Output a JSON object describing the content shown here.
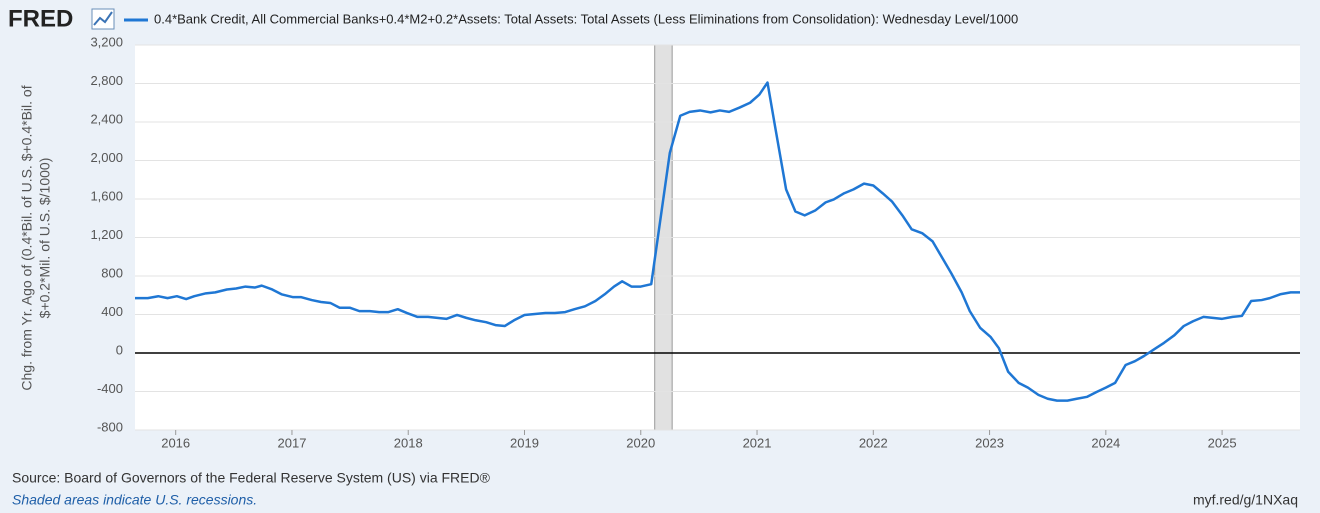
{
  "brand": "FRED",
  "chart_data": {
    "type": "line",
    "ylabel": [
      "Chg. from Yr. Ago of (0.4*Bil. of U.S. $+0.4*Bil. of",
      "$+0.2*Mil. of U.S. $/1000)"
    ],
    "xlim": [
      2015.65,
      2025.67
    ],
    "xticks": [
      2016,
      2017,
      2018,
      2019,
      2020,
      2021,
      2022,
      2023,
      2024,
      2025
    ],
    "ylim": [
      -800,
      3200
    ],
    "yticks": [
      {
        "value": 3200,
        "label": "3,200"
      },
      {
        "value": 2800,
        "label": "2,800"
      },
      {
        "value": 2400,
        "label": "2,400"
      },
      {
        "value": 2000,
        "label": "2,000"
      },
      {
        "value": 1600,
        "label": "1,600"
      },
      {
        "value": 1200,
        "label": "1,200"
      },
      800,
      400,
      0,
      -400,
      -800
    ],
    "grid": true,
    "recessions": [
      [
        2020.12,
        2020.27
      ]
    ],
    "series": [
      {
        "name": "0.4*Bank Credit, All Commercial Banks+0.4*M2+0.2*Assets: Total Assets: Total Assets (Less Eliminations from Consolidation): Wednesday Level/1000",
        "color": "#1f77d4",
        "x": [
          2015.65,
          2015.76,
          2015.85,
          2015.93,
          2016.01,
          2016.09,
          2016.16,
          2016.26,
          2016.34,
          2016.44,
          2016.52,
          2016.6,
          2016.68,
          2016.74,
          2016.83,
          2016.91,
          2017.01,
          2017.08,
          2017.17,
          2017.25,
          2017.33,
          2017.41,
          2017.5,
          2017.58,
          2017.67,
          2017.75,
          2017.83,
          2017.91,
          2017.99,
          2018.08,
          2018.17,
          2018.25,
          2018.33,
          2018.42,
          2018.5,
          2018.58,
          2018.67,
          2018.75,
          2018.83,
          2018.91,
          2019.0,
          2019.09,
          2019.18,
          2019.26,
          2019.35,
          2019.43,
          2019.52,
          2019.61,
          2019.69,
          2019.77,
          2019.84,
          2019.92,
          2020.0,
          2020.09,
          2020.25,
          2020.34,
          2020.42,
          2020.51,
          2020.6,
          2020.68,
          2020.76,
          2020.85,
          2020.94,
          2021.02,
          2021.09,
          2021.16,
          2021.25,
          2021.33,
          2021.41,
          2021.5,
          2021.59,
          2021.66,
          2021.75,
          2021.83,
          2021.92,
          2022.0,
          2022.08,
          2022.16,
          2022.25,
          2022.33,
          2022.42,
          2022.51,
          2022.58,
          2022.67,
          2022.76,
          2022.83,
          2022.92,
          2023.01,
          2023.08,
          2023.16,
          2023.25,
          2023.33,
          2023.42,
          2023.5,
          2023.58,
          2023.67,
          2023.75,
          2023.84,
          2023.92,
          2024.0,
          2024.08,
          2024.17,
          2024.25,
          2024.33,
          2024.43,
          2024.5,
          2024.59,
          2024.67,
          2024.75,
          2024.84,
          2024.92,
          2025.0,
          2025.09,
          2025.17,
          2025.25,
          2025.34,
          2025.41,
          2025.5,
          2025.59,
          2025.67
        ],
        "values": [
          570,
          570,
          590,
          570,
          590,
          560,
          590,
          620,
          630,
          660,
          670,
          690,
          680,
          700,
          660,
          610,
          580,
          580,
          550,
          530,
          520,
          470,
          470,
          435,
          435,
          425,
          425,
          455,
          415,
          375,
          375,
          365,
          355,
          395,
          365,
          340,
          320,
          290,
          280,
          340,
          395,
          405,
          415,
          415,
          425,
          455,
          485,
          540,
          610,
          690,
          745,
          690,
          690,
          715,
          2080,
          2465,
          2505,
          2520,
          2500,
          2520,
          2505,
          2550,
          2600,
          2685,
          2810,
          2320,
          1700,
          1470,
          1430,
          1480,
          1565,
          1595,
          1660,
          1700,
          1760,
          1740,
          1660,
          1575,
          1430,
          1285,
          1245,
          1160,
          1015,
          830,
          630,
          435,
          260,
          165,
          50,
          -195,
          -310,
          -360,
          -435,
          -475,
          -495,
          -495,
          -475,
          -455,
          -405,
          -360,
          -310,
          -125,
          -85,
          -30,
          50,
          105,
          185,
          280,
          330,
          375,
          365,
          355,
          375,
          385,
          540,
          550,
          570,
          610,
          630,
          630
        ]
      }
    ]
  },
  "footer": {
    "source": "Source: Board of Governors of the Federal Reserve System (US) via FRED®",
    "note": "Shaded areas indicate U.S. recessions.",
    "url": "myf.red/g/1NXaq"
  }
}
